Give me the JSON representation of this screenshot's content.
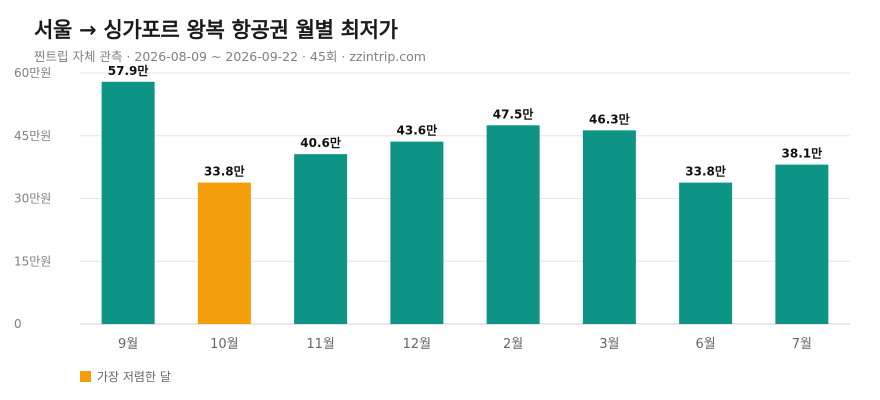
{
  "header": {
    "title": "서울 → 싱가포르 왕복 항공권 월별 최저가",
    "subtitle": "찐트립 자체 관측 · 2026-08-09 ~ 2026-09-22 · 45회 · zzintrip.com"
  },
  "chart_data": {
    "type": "bar",
    "categories": [
      "9월",
      "10월",
      "11월",
      "12월",
      "2월",
      "3월",
      "6월",
      "7월"
    ],
    "values": [
      57.9,
      33.8,
      40.6,
      43.6,
      47.5,
      46.3,
      33.8,
      38.1
    ],
    "value_labels": [
      "57.9만",
      "33.8만",
      "40.6만",
      "43.6만",
      "47.5만",
      "46.3만",
      "33.8만",
      "38.1만"
    ],
    "y_ticks": [
      0,
      15,
      30,
      45,
      60
    ],
    "y_tick_labels": [
      "0",
      "15만원",
      "30만원",
      "45만원",
      "60만원"
    ],
    "ylim": [
      0,
      60
    ],
    "grid": true,
    "highlight_index": 1,
    "colors": {
      "bar": "#0e9484",
      "highlight": "#f59e0b",
      "grid": "#e6e6e6"
    },
    "legend": {
      "label": "가장 저렴한 달",
      "placement": "bottom-left"
    }
  }
}
